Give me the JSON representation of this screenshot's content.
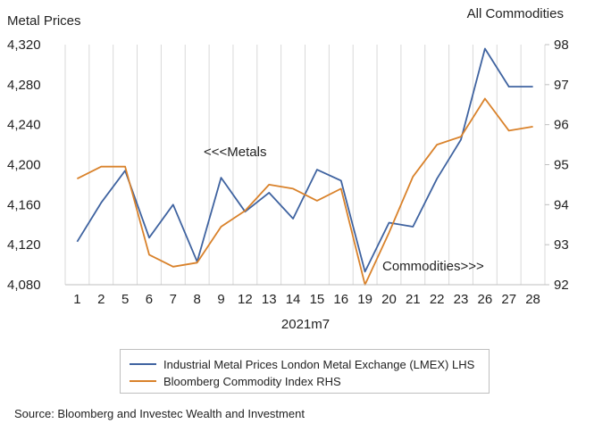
{
  "chart_data": {
    "type": "line",
    "title_left": "Metal Prices",
    "title_right": "All Commodities",
    "xlabel": "2021m7",
    "categories": [
      "1",
      "2",
      "5",
      "6",
      "7",
      "8",
      "9",
      "12",
      "13",
      "14",
      "15",
      "16",
      "19",
      "20",
      "21",
      "22",
      "23",
      "26",
      "27",
      "28"
    ],
    "y_left": {
      "ylim": [
        4080,
        4320
      ],
      "ticks": [
        "4,080",
        "4,120",
        "4,160",
        "4,200",
        "4,240",
        "4,280",
        "4,320"
      ]
    },
    "y_right": {
      "ylim": [
        92,
        98
      ],
      "ticks": [
        "92",
        "93",
        "94",
        "95",
        "96",
        "97",
        "98"
      ]
    },
    "series": [
      {
        "name": "Industrial Metal Prices London Metal Exchange (LMEX) LHS",
        "axis": "left",
        "color": "#3f63a0",
        "values": [
          4123,
          4162,
          4194,
          4127,
          4160,
          4103,
          4187,
          4153,
          4172,
          4146,
          4195,
          4184,
          4093,
          4142,
          4138,
          4186,
          4225,
          4316,
          4278,
          4278
        ]
      },
      {
        "name": "Bloomberg Commodity Index RHS",
        "axis": "right",
        "color": "#d9822b",
        "values": [
          94.65,
          94.95,
          94.95,
          92.75,
          92.45,
          92.55,
          93.45,
          93.85,
          94.5,
          94.4,
          94.1,
          94.4,
          92.0,
          93.3,
          94.7,
          95.5,
          95.7,
          96.65,
          95.85,
          95.95
        ]
      }
    ],
    "annotations": [
      "<<<Metals",
      "Commodities>>>"
    ],
    "grid": "vertical",
    "legend": "bottom"
  },
  "source": "Source: Bloomberg and Investec Wealth and Investment"
}
